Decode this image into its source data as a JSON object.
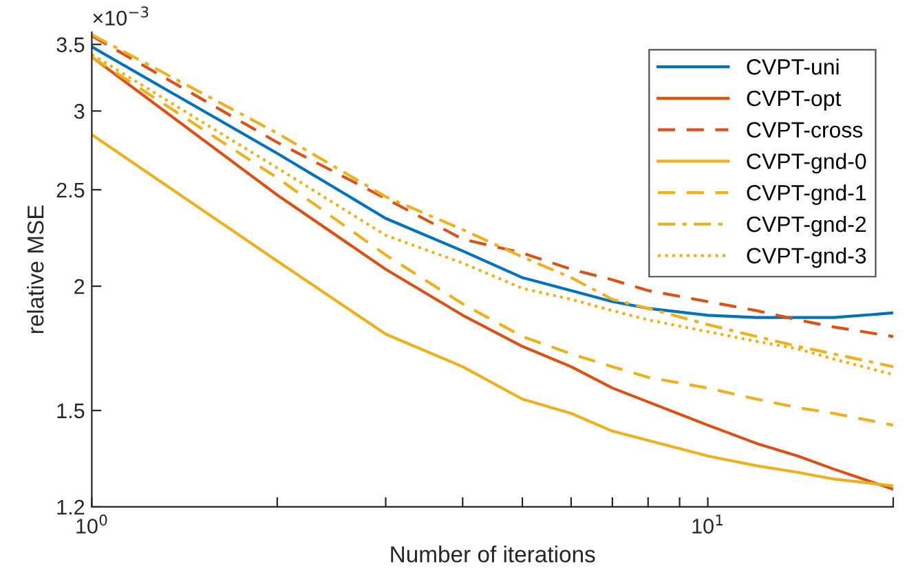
{
  "chart_data": {
    "type": "line",
    "xlabel": "Number of iterations",
    "ylabel": "relative MSE",
    "log": "xy",
    "xlim": [
      1,
      20
    ],
    "ylim": [
      1.2,
      3.6
    ],
    "xticks": [
      {
        "value": 1,
        "label": "10$^{0}$"
      },
      {
        "value": 2,
        "label": null
      },
      {
        "value": 3,
        "label": null
      },
      {
        "value": 4,
        "label": null
      },
      {
        "value": 5,
        "label": null
      },
      {
        "value": 6,
        "label": null
      },
      {
        "value": 7,
        "label": null
      },
      {
        "value": 8,
        "label": null
      },
      {
        "value": 9,
        "label": null
      },
      {
        "value": 10,
        "label": "10$^{1}$"
      },
      {
        "value": 20,
        "label": null
      }
    ],
    "yticks": [
      1.2,
      1.5,
      2,
      2.5,
      3,
      3.5
    ],
    "annotations": [
      "×10$^{−3}$"
    ],
    "legend": "top right",
    "grid": false,
    "x": [
      1,
      2,
      3,
      4,
      5,
      6,
      7,
      8,
      10,
      12,
      14,
      16,
      20
    ],
    "series": [
      {
        "name": "CVPT-uni",
        "color": "#0072bd",
        "line_style": "solid",
        "values": [
          3.48,
          2.72,
          2.34,
          2.17,
          2.04,
          1.98,
          1.93,
          1.9,
          1.87,
          1.86,
          1.86,
          1.86,
          1.88
        ]
      },
      {
        "name": "CVPT-opt",
        "color": "#d95319",
        "line_style": "solid",
        "values": [
          3.4,
          2.47,
          2.08,
          1.87,
          1.74,
          1.66,
          1.58,
          1.53,
          1.45,
          1.39,
          1.35,
          1.31,
          1.25
        ]
      },
      {
        "name": "CVPT-cross",
        "color": "#d95319",
        "line_style": "dashed",
        "values": [
          3.57,
          2.79,
          2.45,
          2.23,
          2.16,
          2.08,
          2.03,
          1.98,
          1.93,
          1.89,
          1.85,
          1.82,
          1.78
        ]
      },
      {
        "name": "CVPT-gnd-0",
        "color": "#edb120",
        "line_style": "solid",
        "values": [
          2.84,
          2.12,
          1.79,
          1.66,
          1.54,
          1.49,
          1.43,
          1.4,
          1.35,
          1.32,
          1.3,
          1.28,
          1.26
        ]
      },
      {
        "name": "CVPT-gnd-1",
        "color": "#edb120",
        "line_style": "dashed",
        "values": [
          3.4,
          2.57,
          2.15,
          1.92,
          1.78,
          1.71,
          1.66,
          1.62,
          1.58,
          1.54,
          1.51,
          1.49,
          1.45
        ]
      },
      {
        "name": "CVPT-gnd-2",
        "color": "#edb120",
        "line_style": "dashdot",
        "values": [
          3.58,
          2.85,
          2.46,
          2.28,
          2.14,
          2.04,
          1.94,
          1.9,
          1.83,
          1.78,
          1.74,
          1.71,
          1.66
        ]
      },
      {
        "name": "CVPT-gnd-3",
        "color": "#edb120",
        "line_style": "dotted",
        "values": [
          3.42,
          2.63,
          2.25,
          2.11,
          1.99,
          1.94,
          1.89,
          1.85,
          1.8,
          1.76,
          1.73,
          1.69,
          1.63
        ]
      }
    ]
  }
}
